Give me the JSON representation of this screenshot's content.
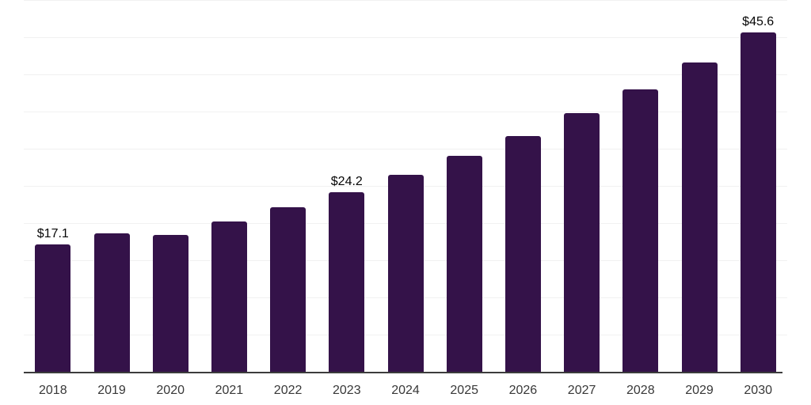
{
  "chart_data": {
    "type": "bar",
    "title": "",
    "xlabel": "",
    "ylabel": "",
    "categories": [
      "2018",
      "2019",
      "2020",
      "2021",
      "2022",
      "2023",
      "2024",
      "2025",
      "2026",
      "2027",
      "2028",
      "2029",
      "2030"
    ],
    "values": [
      17.1,
      18.6,
      18.4,
      20.2,
      22.1,
      24.2,
      26.5,
      29.0,
      31.7,
      34.8,
      38.0,
      41.6,
      45.6
    ],
    "data_labels": [
      "$17.1",
      "",
      "",
      "",
      "",
      "$24.2",
      "",
      "",
      "",
      "",
      "",
      "",
      "$45.6"
    ],
    "ylim": [
      0,
      50
    ],
    "gridline_step": 5,
    "grid": "horizontal",
    "legend": "none",
    "colors": {
      "bar_fill": "#341249",
      "gridline": "#f1f1f1",
      "axis_line": "#3c3c3c",
      "data_label_text": "#060606",
      "tick_label_text": "#383838",
      "background": "#ffffff"
    }
  }
}
